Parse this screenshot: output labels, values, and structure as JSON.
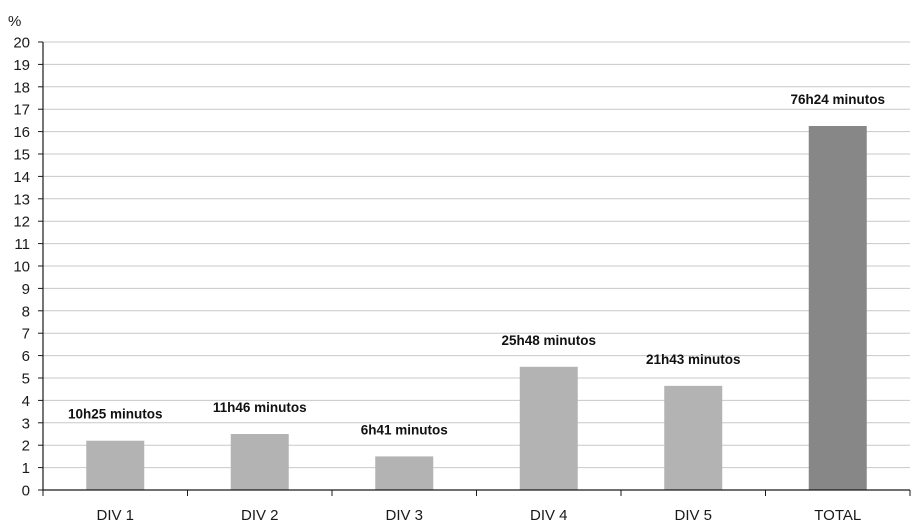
{
  "chart_data": {
    "type": "bar",
    "ylabel": "%",
    "ylim": [
      0,
      20
    ],
    "ytick_step": 1,
    "grid": true,
    "categories": [
      "DIV 1",
      "DIV 2",
      "DIV 3",
      "DIV 4",
      "DIV 5",
      "TOTAL"
    ],
    "values": [
      2.2,
      2.5,
      1.5,
      5.5,
      4.65,
      16.25
    ],
    "data_labels": [
      "10h25 minutos",
      "11h46 minutos",
      "6h41 minutos",
      "25h48 minutos",
      "21h43 minutos",
      "76h24 minutos"
    ],
    "bar_colors": [
      "#b3b3b3",
      "#b3b3b3",
      "#b3b3b3",
      "#b3b3b3",
      "#b3b3b3",
      "#878787"
    ],
    "grid_color": "#c8c8c8",
    "axis_color": "#1a1a1a"
  }
}
